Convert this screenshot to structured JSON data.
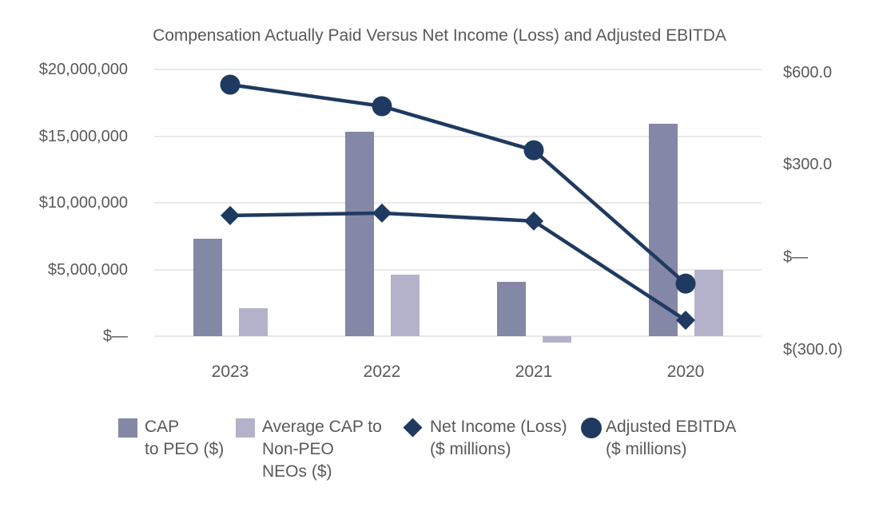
{
  "page": {
    "background": "#FFFFFF"
  },
  "chart_data": {
    "type": "combo",
    "title": "Compensation Actually Paid Versus Net Income (Loss) and Adjusted EBITDA",
    "categories": [
      "2023",
      "2022",
      "2021",
      "2020"
    ],
    "left_axis": {
      "min": 0,
      "max": 20000000,
      "ticks": [
        {
          "value": 20000000,
          "label": "$20,000,000"
        },
        {
          "value": 15000000,
          "label": "$15,000,000"
        },
        {
          "value": 10000000,
          "label": "$10,000,000"
        },
        {
          "value": 5000000,
          "label": "$5,000,000"
        },
        {
          "value": 0,
          "label": "$—"
        }
      ]
    },
    "right_axis": {
      "min": -300,
      "max": 600,
      "ticks": [
        {
          "value": 600,
          "label": "$600.0"
        },
        {
          "value": 300,
          "label": "$300.0"
        },
        {
          "value": 0,
          "label": "$—"
        },
        {
          "value": -300,
          "label": "$(300.0)"
        }
      ]
    },
    "series": [
      {
        "name": "CAP to PEO ($)",
        "type": "bar",
        "axis": "left",
        "color": "#8487A5",
        "label_lines": [
          "CAP",
          "to PEO ($)"
        ],
        "values": [
          7300000,
          15300000,
          4100000,
          15900000
        ]
      },
      {
        "name": "Average CAP to Non-PEO NEOs ($)",
        "type": "bar",
        "axis": "left",
        "color": "#B4B2CA",
        "label_lines": [
          "Average CAP to",
          "Non-PEO",
          "NEOs ($)"
        ],
        "values": [
          2100000,
          4600000,
          -500000,
          5000000
        ]
      },
      {
        "name": "Net Income (Loss) ($ millions)",
        "type": "line",
        "marker": "diamond",
        "axis": "right",
        "color": "#1F3A60",
        "label_lines": [
          "Net Income (Loss)",
          "($ millions)"
        ],
        "values": [
          135,
          143,
          117,
          -205
        ]
      },
      {
        "name": "Adjusted EBITDA ($ millions)",
        "type": "line",
        "marker": "circle",
        "axis": "right",
        "color": "#1F3A60",
        "label_lines": [
          "Adjusted EBITDA",
          "($ millions)"
        ],
        "values": [
          560,
          490,
          347,
          -86
        ]
      }
    ],
    "grid_color": "#E9E9EC",
    "text_color": "#595959",
    "legend_position": "bottom",
    "gridlines": true
  }
}
